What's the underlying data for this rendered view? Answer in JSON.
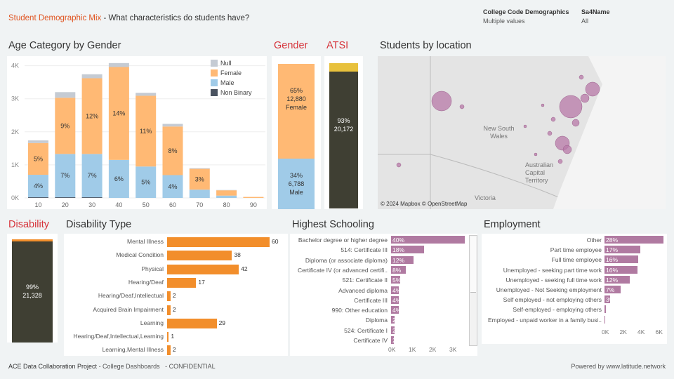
{
  "header": {
    "title": "Student Demographic Mix",
    "subtitle": " - What characteristics do students have?"
  },
  "filters": [
    {
      "label": "College Code Demographics",
      "value": "Multiple values"
    },
    {
      "label": "Sa4Name",
      "value": "All"
    }
  ],
  "colors": {
    "female": "#ffb974",
    "male": "#a0cbe8",
    "null": "#c5cbd3",
    "nonbinary": "#4a5360",
    "accent": "#d6333a",
    "orange": "#f28e2b",
    "purple": "#b07aa1",
    "atsi_yellow": "#e8c13c",
    "dark": "#3f3f33"
  },
  "age_chart": {
    "title": "Age Category by Gender",
    "legend": [
      "Null",
      "Female",
      "Male",
      "Non Binary"
    ],
    "chart_data": {
      "type": "bar",
      "stacked": true,
      "categories": [
        "10",
        "20",
        "30",
        "40",
        "50",
        "60",
        "70",
        "80",
        "90"
      ],
      "yticks": [
        "0K",
        "1K",
        "2K",
        "3K",
        "4K"
      ],
      "ylim": [
        0,
        4200
      ],
      "series": [
        {
          "name": "Non Binary",
          "values": [
            20,
            20,
            20,
            0,
            0,
            0,
            0,
            0,
            0
          ]
        },
        {
          "name": "Male",
          "values": [
            680,
            1310,
            1310,
            1150,
            950,
            690,
            250,
            70,
            0
          ],
          "labels": [
            "4%",
            "7%",
            "7%",
            "6%",
            "5%",
            "4%",
            "",
            "",
            ""
          ]
        },
        {
          "name": "Female",
          "values": [
            960,
            1700,
            2290,
            2810,
            2140,
            1470,
            630,
            160,
            30
          ],
          "labels": [
            "5%",
            "9%",
            "12%",
            "14%",
            "11%",
            "8%",
            "3%",
            "",
            ""
          ]
        },
        {
          "name": "Null",
          "values": [
            80,
            170,
            120,
            120,
            90,
            80,
            20,
            10,
            0
          ]
        }
      ]
    }
  },
  "gender": {
    "title": "Gender",
    "female": {
      "pct": "65%",
      "count": "12,880",
      "label": "Female",
      "share": 65
    },
    "male": {
      "pct": "34%",
      "count": "6,788",
      "label": "Male",
      "share": 34
    }
  },
  "atsi": {
    "title": "ATSI",
    "pct": "93%",
    "count": "20,172",
    "share": 93
  },
  "map": {
    "title": "Students by location",
    "labels": [
      "New South Wales",
      "Australian Capital Territory",
      "Victoria"
    ],
    "attribution": "© 2024 Mapbox © OpenStreetMap"
  },
  "disability": {
    "title": "Disability",
    "pct": "99%",
    "count": "21,328",
    "share": 99
  },
  "disability_type": {
    "title": "Disability Type",
    "max": 60,
    "items": [
      {
        "label": "Mental Illness",
        "value": 60
      },
      {
        "label": "Medical Condition",
        "value": 38
      },
      {
        "label": "Physical",
        "value": 42
      },
      {
        "label": "Hearing/Deaf",
        "value": 17
      },
      {
        "label": "Hearing/Deaf,Intellectual",
        "value": 2
      },
      {
        "label": "Acquired Brain Impairment",
        "value": 2
      },
      {
        "label": "Learning",
        "value": 29
      },
      {
        "label": "Hearing/Deaf,Intellectual,Learning",
        "value": 1
      },
      {
        "label": "Learning,Mental Illness",
        "value": 2
      }
    ]
  },
  "schooling": {
    "title": "Highest Schooling",
    "xticks": [
      "0K",
      "1K",
      "2K",
      "3K"
    ],
    "items": [
      {
        "label": "Bachelor degree or higher degree",
        "pct": "40%",
        "value": 40
      },
      {
        "label": "514: Certificate III",
        "pct": "18%",
        "value": 18
      },
      {
        "label": "Diploma (or associate diploma)",
        "pct": "12%",
        "value": 12
      },
      {
        "label": "Certificate IV (or advanced certifi..",
        "pct": "8%",
        "value": 8
      },
      {
        "label": "521: Certificate II",
        "pct": "5%",
        "value": 5
      },
      {
        "label": "Advanced diploma",
        "pct": "4%",
        "value": 4
      },
      {
        "label": "Certificate III",
        "pct": "4%",
        "value": 4
      },
      {
        "label": "990: Other education",
        "pct": "4%",
        "value": 4
      },
      {
        "label": "Diploma",
        "pct": "2%",
        "value": 2
      },
      {
        "label": "524: Certificate I",
        "pct": "2%",
        "value": 2
      },
      {
        "label": "Certificate IV",
        "pct": "2%",
        "value": 1.5
      }
    ]
  },
  "employment": {
    "title": "Employment",
    "xticks": [
      "0K",
      "2K",
      "4K",
      "6K"
    ],
    "items": [
      {
        "label": "Other",
        "pct": "28%",
        "value": 28
      },
      {
        "label": "Part time employee",
        "pct": "17%",
        "value": 17
      },
      {
        "label": "Full time employee",
        "pct": "16%",
        "value": 16
      },
      {
        "label": "Unemployed - seeking part time work",
        "pct": "16%",
        "value": 15.5
      },
      {
        "label": "Unemployed - seeking full time work",
        "pct": "12%",
        "value": 12
      },
      {
        "label": "Unemployed - Not Seeking employment",
        "pct": "7%",
        "value": 7.5
      },
      {
        "label": "Self employed - not employing others",
        "pct": "3%",
        "value": 2.8
      },
      {
        "label": "Self-employed - employing others",
        "pct": "",
        "value": 0.5
      },
      {
        "label": "Employed - unpaid worker in a family busi..",
        "pct": "",
        "value": 0.3
      }
    ]
  },
  "footer": {
    "project": "ACE Data Collaboration Project",
    "sub": " - College Dashboards",
    "conf": "- CONFIDENTIAL",
    "powered": "Powered by www.latitude.network"
  }
}
